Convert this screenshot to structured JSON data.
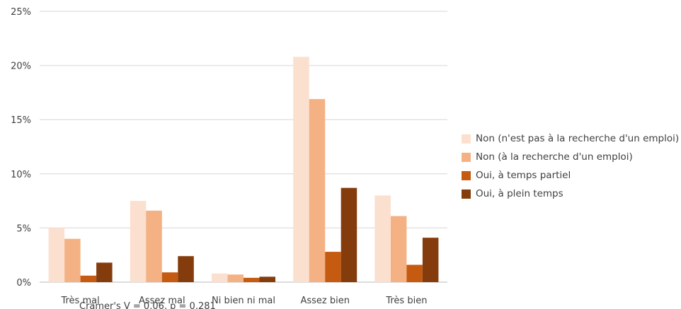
{
  "chart_data": {
    "type": "bar",
    "categories": [
      "Très mal",
      "Assez mal",
      "Ni bien ni mal",
      "Assez bien",
      "Très bien"
    ],
    "series": [
      {
        "name": "Non (n'est pas à la recherche d'un emploi)",
        "color": "#fbe0d0",
        "values": [
          5.0,
          7.5,
          0.8,
          20.8,
          8.0
        ]
      },
      {
        "name": "Non (à la recherche d'un emploi)",
        "color": "#f4b183",
        "values": [
          4.0,
          6.6,
          0.7,
          16.9,
          6.1
        ]
      },
      {
        "name": "Oui, à temps partiel",
        "color": "#c55a11",
        "values": [
          0.6,
          0.9,
          0.4,
          2.8,
          1.6
        ]
      },
      {
        "name": "Oui, à plein temps",
        "color": "#843c0c",
        "values": [
          1.8,
          2.4,
          0.5,
          8.7,
          4.1
        ]
      }
    ],
    "y_ticks": [
      "0%",
      "5%",
      "10%",
      "15%",
      "20%",
      "25%"
    ],
    "ylim": [
      0,
      25
    ],
    "grid": true,
    "legend_position": "right",
    "annotation": "Cramer's V = 0.06, p = 0.281"
  }
}
